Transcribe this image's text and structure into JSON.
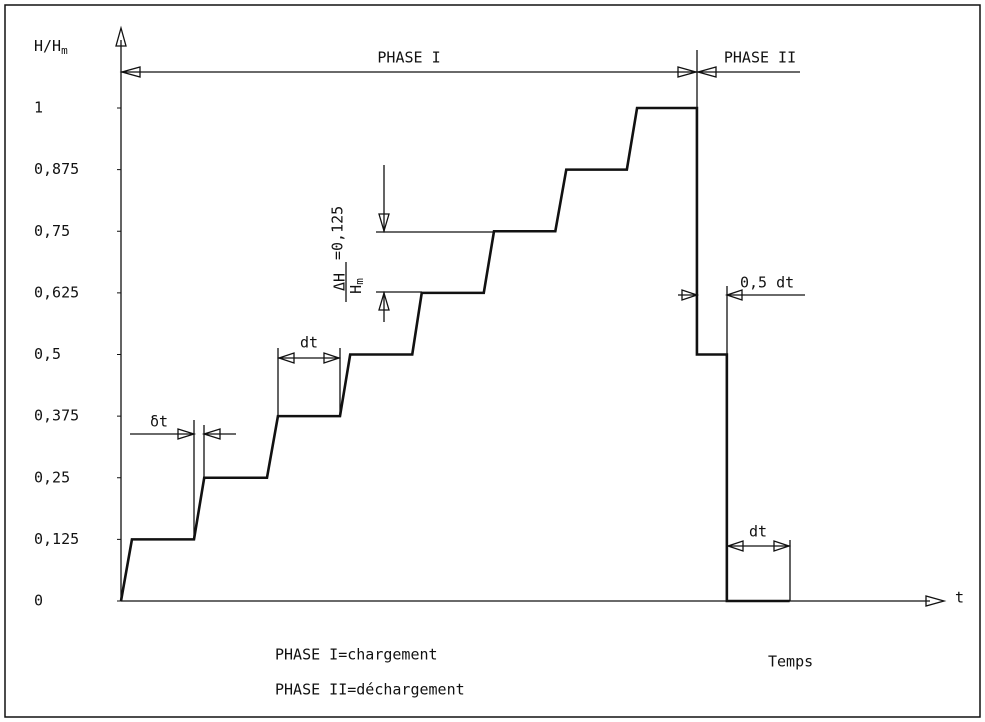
{
  "chart_data": {
    "type": "line",
    "y_label": {
      "main": "H/H",
      "sub": "m"
    },
    "x_label": "t",
    "x_caption": "Temps",
    "x": [
      0,
      0.15,
      1.0,
      1.14,
      2.0,
      2.15,
      3.0,
      3.14,
      3.99,
      4.12,
      4.97,
      5.11,
      5.95,
      6.1,
      6.93,
      7.07,
      7.89,
      7.89,
      8.3,
      8.3,
      9.16
    ],
    "series": [
      {
        "color": "#111111",
        "values": [
          0,
          0.125,
          0.125,
          0.25,
          0.25,
          0.375,
          0.375,
          0.5,
          0.5,
          0.625,
          0.625,
          0.75,
          0.75,
          0.875,
          0.875,
          1,
          1,
          0.5,
          0.5,
          0,
          0
        ]
      }
    ],
    "xlim": [
      0,
      11.22
    ],
    "ylim": [
      0,
      1
    ],
    "yticks": [
      0,
      {
        "value": 0.125,
        "label": "0,125"
      },
      {
        "value": 0.25,
        "label": "0,25"
      },
      {
        "value": 0.375,
        "label": "0,375"
      },
      {
        "value": 0.5,
        "label": "0,5"
      },
      {
        "value": 0.625,
        "label": "0,625"
      },
      {
        "value": 0.75,
        "label": "0,75"
      },
      {
        "value": 0.875,
        "label": "0,875"
      },
      1
    ],
    "annotations": {
      "phase1": "PHASE I",
      "phase2": "PHASE II",
      "delta_t": "δt",
      "dt1": "dt",
      "dh_num": "ΔH",
      "dh_den": "H",
      "dh_den_sub": "m",
      "dh_value": "=0,125",
      "half_dt": "0,5 dt",
      "dt2": "dt"
    },
    "legend": [
      "PHASE I=chargement",
      "PHASE II=déchargement"
    ]
  }
}
